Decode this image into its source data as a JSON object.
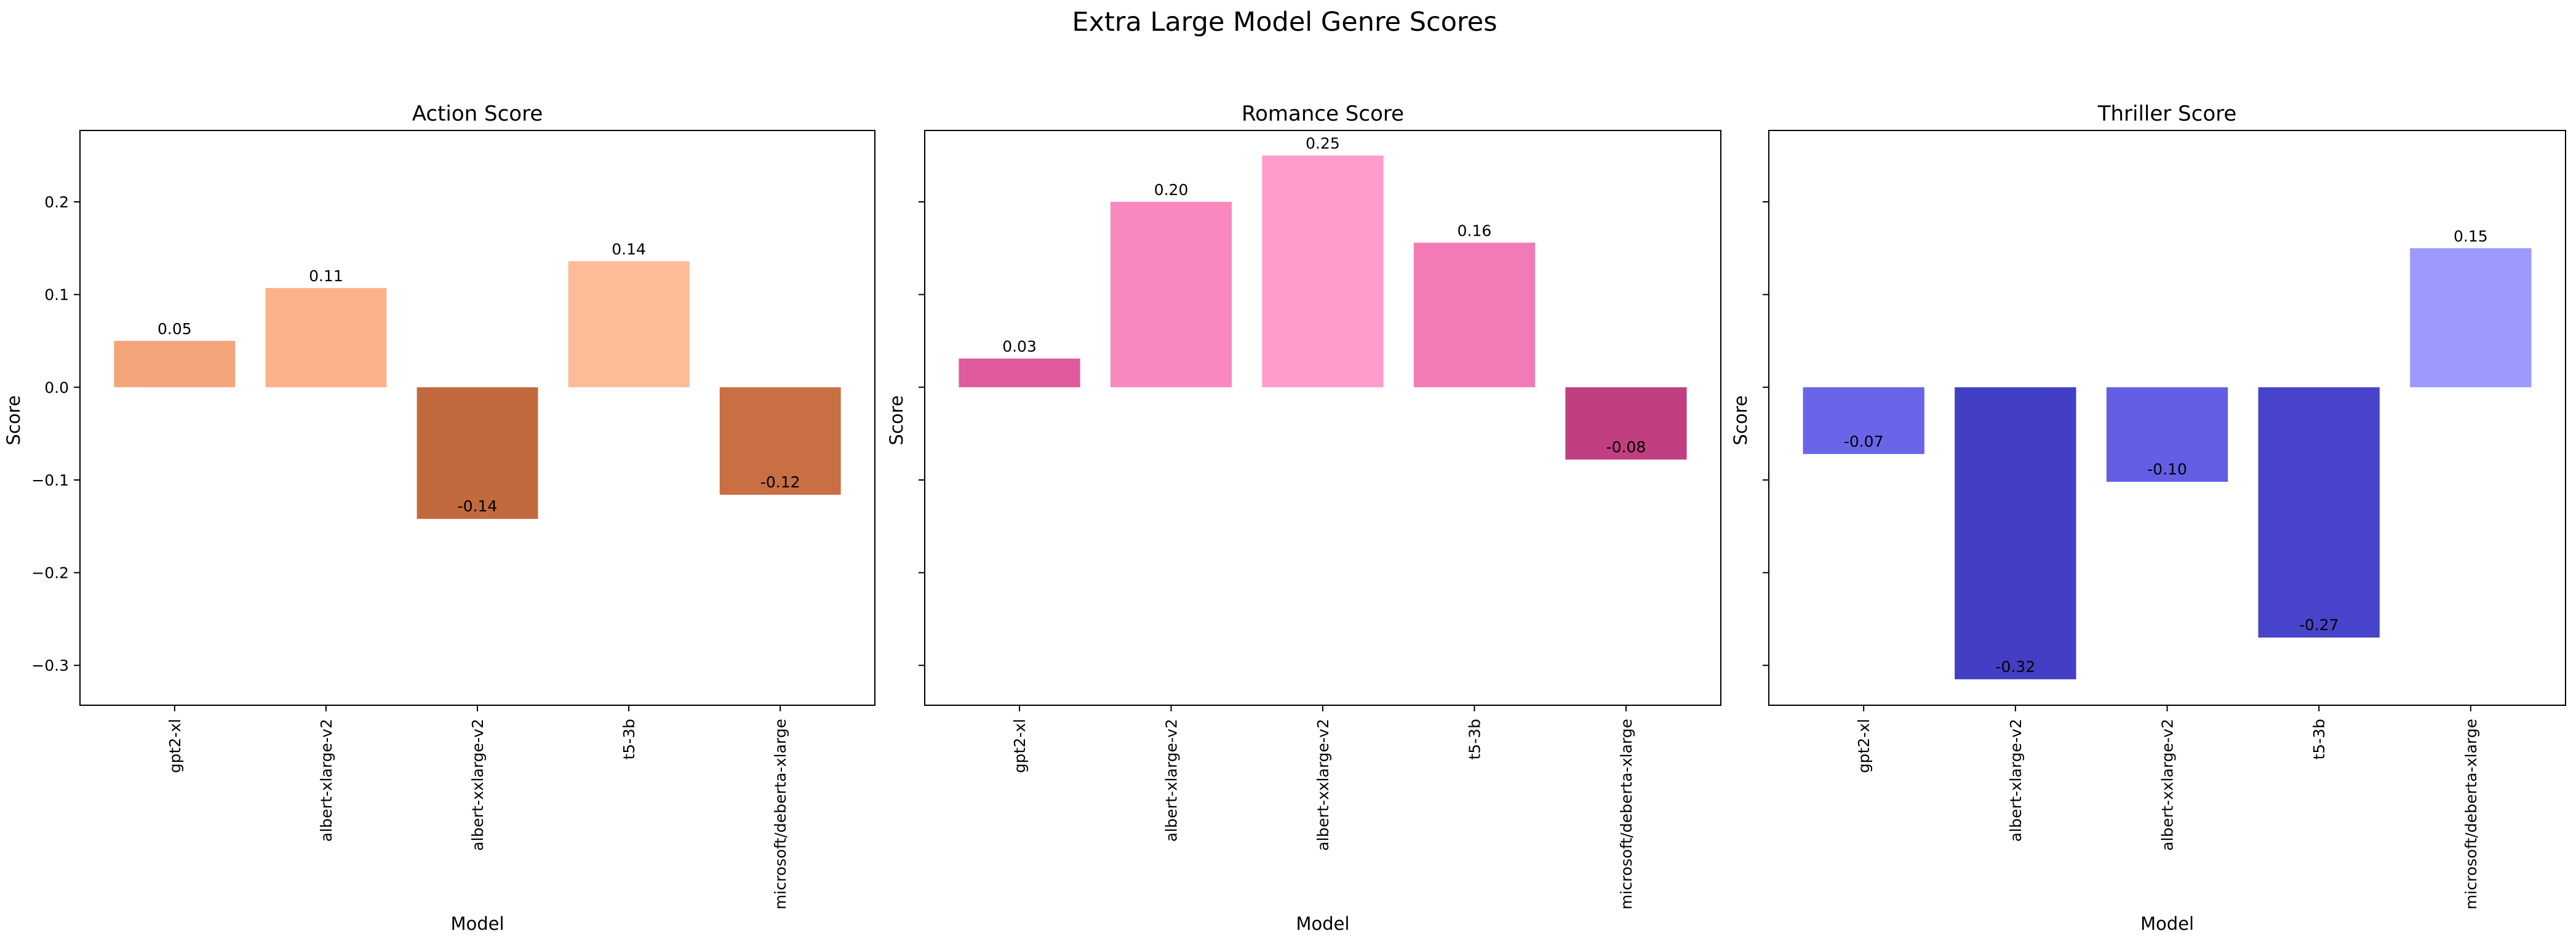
{
  "suptitle": "Extra Large Model Genre Scores",
  "chart_data": [
    {
      "type": "bar",
      "title": "Action Score",
      "xlabel": "Model",
      "ylabel": "Score",
      "categories": [
        "gpt2-xl",
        "albert-xlarge-v2",
        "albert-xxlarge-v2",
        "t5-3b",
        "microsoft/deberta-xlarge"
      ],
      "values": [
        0.05,
        0.107,
        -0.142,
        0.136,
        -0.116
      ],
      "value_labels": [
        "0.05",
        "0.11",
        "-0.14",
        "0.14",
        "-0.12"
      ],
      "colors": [
        "#F4A57A",
        "#FDB18B",
        "#C06A3E",
        "#FFBA98",
        "#C86F43"
      ],
      "ylim": [
        -0.343,
        0.277
      ],
      "yticks": [
        -0.3,
        -0.2,
        -0.1,
        0.0,
        0.1,
        0.2
      ],
      "ytick_labels": [
        "−0.3",
        "−0.2",
        "−0.1",
        "0.0",
        "0.1",
        "0.2"
      ],
      "grid": false,
      "legend": "none"
    },
    {
      "type": "bar",
      "title": "Romance Score",
      "xlabel": "Model",
      "ylabel": "Score",
      "categories": [
        "gpt2-xl",
        "albert-xlarge-v2",
        "albert-xxlarge-v2",
        "t5-3b",
        "microsoft/deberta-xlarge"
      ],
      "values": [
        0.031,
        0.2,
        0.25,
        0.156,
        -0.078
      ],
      "value_labels": [
        "0.03",
        "0.20",
        "0.25",
        "0.16",
        "-0.08"
      ],
      "colors": [
        "#DE5A9A",
        "#F988BF",
        "#FF9CCB",
        "#F47AB5",
        "#C13F80"
      ],
      "ylim": [
        -0.343,
        0.277
      ],
      "yticks": [
        -0.3,
        -0.2,
        -0.1,
        0.0,
        0.1,
        0.2
      ],
      "ytick_labels": [
        "",
        "",
        "",
        "",
        "",
        ""
      ],
      "grid": false,
      "legend": "none"
    },
    {
      "type": "bar",
      "title": "Thriller Score",
      "xlabel": "Model",
      "ylabel": "Score",
      "categories": [
        "gpt2-xl",
        "albert-xlarge-v2",
        "albert-xxlarge-v2",
        "t5-3b",
        "microsoft/deberta-xlarge"
      ],
      "values": [
        -0.072,
        -0.315,
        -0.102,
        -0.27,
        0.15
      ],
      "value_labels": [
        "-0.07",
        "-0.32",
        "-0.10",
        "-0.27",
        "0.15"
      ],
      "colors": [
        "#6865E8",
        "#423FC4",
        "#625FE5",
        "#4744CB",
        "#9C9AFD"
      ],
      "ylim": [
        -0.343,
        0.277
      ],
      "yticks": [
        -0.3,
        -0.2,
        -0.1,
        0.0,
        0.1,
        0.2
      ],
      "ytick_labels": [
        "",
        "",
        "",
        "",
        "",
        ""
      ],
      "grid": false,
      "legend": "none"
    }
  ]
}
